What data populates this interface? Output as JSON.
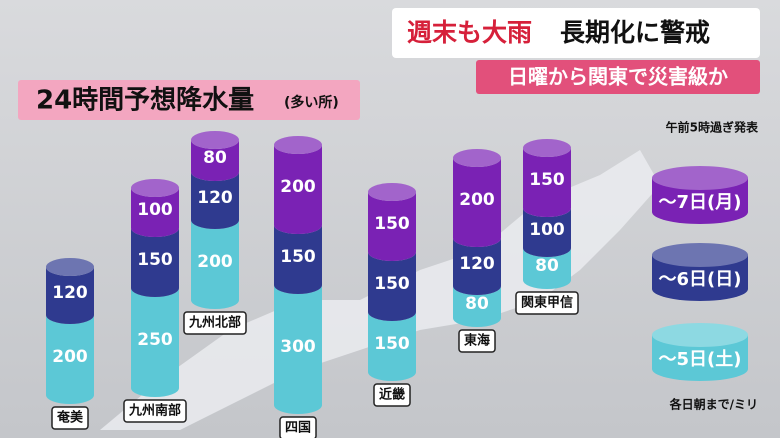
{
  "chart_data": {
    "type": "stacked-cylinder",
    "title": "24時間予想降水量",
    "subtitle": "(多い所)",
    "headline_red": "週末も大雨",
    "headline": "長期化に警戒",
    "banner": "日曜から関東で災害級か",
    "issued": "午前5時過ぎ発表",
    "unit_note": "各日朝まで/ミリ",
    "categories": [
      "奄美",
      "九州南部",
      "九州北部",
      "四国",
      "近畿",
      "東海",
      "関東甲信"
    ],
    "series": [
      {
        "name": "～5日(土)",
        "color": "#5cc8d6",
        "values": [
          200,
          250,
          200,
          300,
          150,
          80,
          80
        ]
      },
      {
        "name": "～6日(日)",
        "color": "#2f3a8f",
        "values": [
          120,
          150,
          120,
          150,
          150,
          120,
          100
        ]
      },
      {
        "name": "～7日(月)",
        "color": "#7a22b4",
        "values": [
          null,
          100,
          80,
          200,
          150,
          200,
          150
        ]
      }
    ]
  }
}
